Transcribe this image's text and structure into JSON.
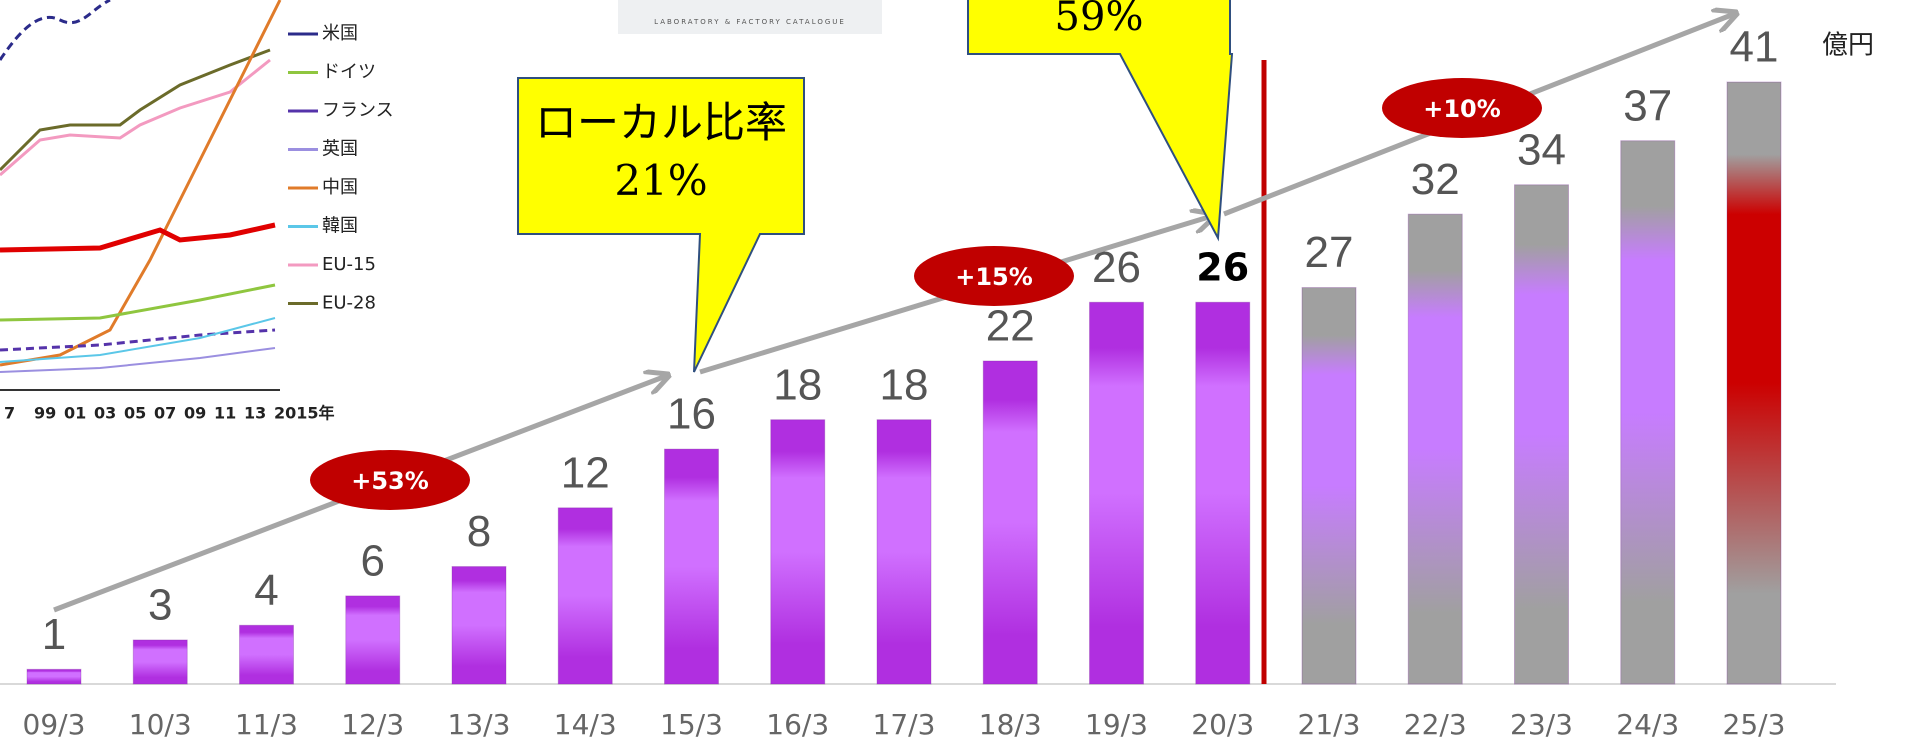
{
  "chart_data": {
    "type": "bar",
    "unit_label": "億円",
    "categories": [
      "09/3",
      "10/3",
      "11/3",
      "12/3",
      "13/3",
      "14/3",
      "15/3",
      "16/3",
      "17/3",
      "18/3",
      "19/3",
      "20/3",
      "21/3",
      "22/3",
      "23/3",
      "24/3",
      "25/3"
    ],
    "values": [
      1,
      3,
      4,
      6,
      8,
      12,
      16,
      18,
      18,
      22,
      26,
      26,
      27,
      32,
      34,
      37,
      41
    ],
    "colors": [
      "#b02fe0",
      "#b02fe0",
      "#b02fe0",
      "#b02fe0",
      "#b02fe0",
      "#b02fe0",
      "#b02fe0",
      "#b02fe0",
      "#b02fe0",
      "#b02fe0",
      "#b02fe0",
      "#b02fe0",
      "#a0a0a0",
      "#a0a0a0",
      "#a0a0a0",
      "#a0a0a0",
      "#a0a0a0"
    ],
    "highlight_colors": [
      "#d070ff",
      "#d070ff",
      "#d070ff",
      "#d070ff",
      "#d070ff",
      "#d070ff",
      "#d070ff",
      "#d070ff",
      "#d070ff",
      "#d070ff",
      "#d070ff",
      "#d070ff",
      "#c77cff",
      "#c77cff",
      "#c77cff",
      "#c77cff",
      "#cc0000"
    ],
    "bold_label_index": 11,
    "ylim": [
      0,
      41
    ],
    "growth_labels": [
      "+53%",
      "+15%",
      "+10%"
    ],
    "callouts": [
      [
        "ローカル比率",
        "21%"
      ],
      [
        "59%"
      ]
    ]
  },
  "inset": {
    "legend": [
      "米国",
      "ドイツ",
      "フランス",
      "英国",
      "中国",
      "韓国",
      "EU-15",
      "EU-28"
    ],
    "legend_colors": [
      "#2b2b8a",
      "#8fc63f",
      "#5533aa",
      "#9b8fe0",
      "#e07b2a",
      "#5bc7e8",
      "#f39ac0",
      "#6b6b2a"
    ],
    "xticks": [
      "7",
      "99",
      "01",
      "03",
      "05",
      "07",
      "09",
      "11",
      "13",
      "2015年"
    ],
    "catalogue": "LABORATORY & FACTORY CATALOGUE"
  }
}
